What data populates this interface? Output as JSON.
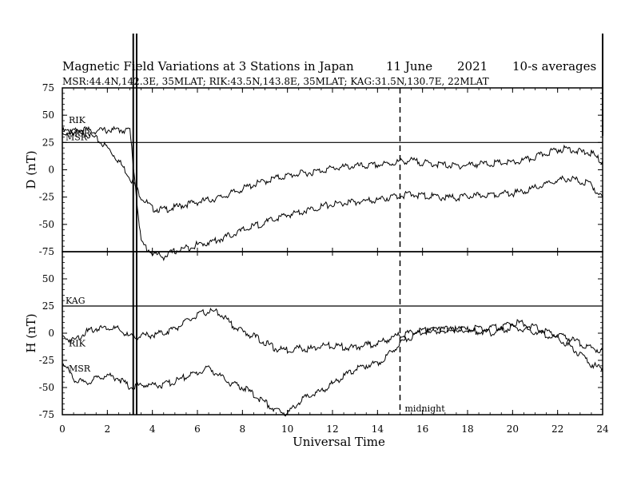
{
  "chart_data": {
    "type": "line",
    "title": "Magnetic Field Variations at 3 Stations in Japan",
    "date_label": "11 June",
    "year_label": "2021",
    "averaging_label": "10-s averages",
    "stations_label": "MSR:44.4N,142.3E, 35MLAT;  RIK:43.5N,143.8E, 35MLAT;  KAG:31.5N,130.7E, 22MLAT",
    "xlabel": "Universal Time",
    "xlim": [
      0,
      24
    ],
    "x_ticks": [
      "0",
      "2",
      "4",
      "6",
      "8",
      "10",
      "12",
      "14",
      "16",
      "18",
      "20",
      "22",
      "24"
    ],
    "midnight_hour": 15,
    "midnight_label": "midnight",
    "data_gap_hours": [
      3.15,
      3.3
    ],
    "panels": [
      {
        "ylabel": "D (nT)",
        "ylim": [
          -75,
          75
        ],
        "y_ticks": [
          "75",
          "50",
          "25",
          "0",
          "-25",
          "-50",
          "-75"
        ],
        "reference_line": 25,
        "baseline_label": "MSR",
        "series": [
          {
            "name": "RIK",
            "x": [
              0,
              0.5,
              1,
              1.5,
              2,
              2.5,
              3,
              3.5,
              4,
              4.5,
              5,
              5.5,
              6,
              6.5,
              7,
              7.5,
              8,
              8.5,
              9,
              9.5,
              10,
              10.5,
              11,
              11.5,
              12,
              12.5,
              13,
              13.5,
              14,
              14.5,
              15,
              15.5,
              16,
              16.5,
              17,
              17.5,
              18,
              18.5,
              19,
              19.5,
              20,
              20.5,
              21,
              21.5,
              22,
              22.5,
              23,
              23.5,
              24
            ],
            "values": [
              37,
              36,
              35,
              30,
              22,
              10,
              -5,
              -23,
              -34,
              -35,
              -33,
              -30,
              -28,
              -26,
              -24,
              -20,
              -16,
              -12,
              -9,
              -6,
              -4,
              -2,
              -1,
              1,
              3,
              4,
              5,
              5,
              6,
              7,
              9,
              10,
              8,
              7,
              6,
              5,
              6,
              7,
              7,
              8,
              8,
              10,
              13,
              17,
              20,
              21,
              18,
              17,
              8
            ]
          },
          {
            "name": "MSR",
            "x": [
              0,
              0.5,
              1,
              1.5,
              2,
              2.5,
              3,
              3.5,
              4,
              4.5,
              5,
              5.5,
              6,
              6.5,
              7,
              7.5,
              8,
              8.5,
              9,
              9.5,
              10,
              10.5,
              11,
              11.5,
              12,
              12.5,
              13,
              13.5,
              14,
              14.5,
              15,
              15.5,
              16,
              16.5,
              17,
              17.5,
              18,
              18.5,
              19,
              19.5,
              20,
              20.5,
              21,
              21.5,
              22,
              22.5,
              23,
              23.5,
              24
            ],
            "values": [
              35,
              37,
              38,
              37,
              38,
              38,
              38,
              -65,
              -75,
              -78,
              -73,
              -70,
              -67,
              -65,
              -62,
              -58,
              -54,
              -50,
              -47,
              -43,
              -40,
              -37,
              -35,
              -32,
              -30,
              -29,
              -28,
              -27,
              -26,
              -24,
              -22,
              -21,
              -22,
              -23,
              -24,
              -24,
              -23,
              -22,
              -21,
              -20,
              -20,
              -18,
              -15,
              -12,
              -8,
              -6,
              -9,
              -12,
              -25
            ]
          }
        ]
      },
      {
        "ylabel": "H (nT)",
        "ylim": [
          -75,
          75
        ],
        "y_ticks": [
          "75",
          "50",
          "25",
          "0",
          "-25",
          "-50",
          "-75"
        ],
        "reference_line": 25,
        "baseline_label": "KAG",
        "series": [
          {
            "name": "RIK",
            "x": [
              0,
              0.5,
              1,
              1.5,
              2,
              2.5,
              3,
              3.5,
              4,
              4.5,
              5,
              5.5,
              6,
              6.5,
              7,
              7.5,
              8,
              8.5,
              9,
              9.5,
              10,
              10.5,
              11,
              11.5,
              12,
              12.5,
              13,
              13.5,
              14,
              14.5,
              15,
              15.5,
              16,
              16.5,
              17,
              17.5,
              18,
              18.5,
              19,
              19.5,
              20,
              20.5,
              21,
              21.5,
              22,
              22.5,
              23,
              23.5,
              24
            ],
            "values": [
              -2,
              -5,
              2,
              6,
              7,
              5,
              -2,
              -1,
              0,
              2,
              6,
              12,
              18,
              22,
              20,
              10,
              3,
              -1,
              -7,
              -13,
              -14,
              -12,
              -13,
              -10,
              -10,
              -11,
              -12,
              -9,
              -8,
              -4,
              0,
              2,
              4,
              5,
              4,
              5,
              5,
              6,
              6,
              8,
              11,
              11,
              7,
              3,
              0,
              -3,
              -8,
              -12,
              -15
            ]
          },
          {
            "name": "MSR",
            "x": [
              0,
              0.5,
              1,
              1.5,
              2,
              2.5,
              3,
              3.5,
              4,
              4.5,
              5,
              5.5,
              6,
              6.5,
              7,
              7.5,
              8,
              8.5,
              9,
              9.5,
              10,
              10.5,
              11,
              11.5,
              12,
              12.5,
              13,
              13.5,
              14,
              14.5,
              15,
              15.5,
              16,
              16.5,
              17,
              17.5,
              18,
              18.5,
              19,
              19.5,
              20,
              20.5,
              21,
              21.5,
              22,
              22.5,
              23,
              23.5,
              24
            ],
            "values": [
              -25,
              -40,
              -45,
              -40,
              -37,
              -40,
              -48,
              -46,
              -46,
              -46,
              -43,
              -38,
              -35,
              -30,
              -38,
              -45,
              -48,
              -55,
              -62,
              -70,
              -72,
              -62,
              -55,
              -52,
              -45,
              -38,
              -32,
              -28,
              -26,
              -18,
              -7,
              -2,
              3,
              4,
              5,
              5,
              4,
              3,
              2,
              4,
              7,
              5,
              3,
              0,
              -3,
              -10,
              -18,
              -27,
              -32
            ]
          }
        ]
      }
    ]
  }
}
